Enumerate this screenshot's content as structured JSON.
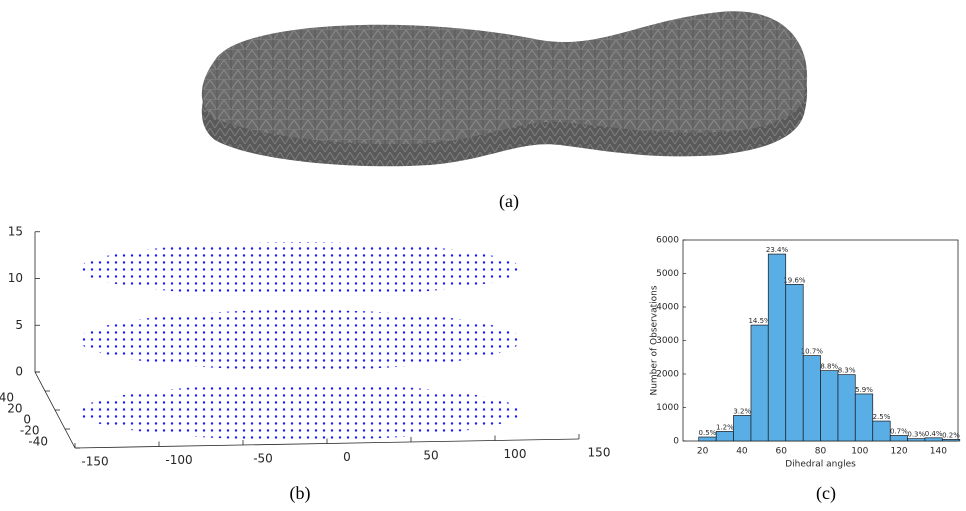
{
  "captions": [
    "(a)",
    "(b)",
    "(c)"
  ],
  "chart_data": [
    {
      "type": "scatter3d",
      "color": "#1a1aff",
      "xlim": [
        -150,
        150
      ],
      "ylim": [
        -40,
        40
      ],
      "zlim": [
        0,
        15
      ],
      "xticks": [
        -150,
        -100,
        -50,
        0,
        50,
        100,
        150
      ],
      "yticks": [
        -40,
        -20,
        0,
        20,
        40
      ],
      "zticks": [
        0,
        5,
        10,
        15
      ]
    },
    {
      "type": "histogram",
      "xlabel": "Dihedral angles",
      "ylabel": "Number of Observations",
      "bins": [
        18,
        26.9,
        35.7,
        44.6,
        53.4,
        62.3,
        71.2,
        80,
        88.9,
        97.7,
        106.6,
        115.5,
        124.3,
        133.2,
        142,
        150.9
      ],
      "values": [
        119,
        286,
        763,
        3460,
        5580,
        4675,
        2550,
        2100,
        1980,
        1405,
        595,
        165,
        70,
        95,
        48
      ],
      "value_labels": [
        "0.5%",
        "1.2%",
        "3.2%",
        "14.5%",
        "23.4%",
        "19.6%",
        "10.7%",
        "8.8%",
        "8.3%",
        "5.9%",
        "2.5%",
        "0.7%",
        "0.3%",
        "0.4%",
        "0.2%"
      ],
      "color": "#5aaee6",
      "edgecolor": "#1a1a1a",
      "xlim": [
        10,
        150
      ],
      "ylim": [
        0,
        6000
      ],
      "xticks": [
        20,
        40,
        60,
        80,
        100,
        120,
        140
      ],
      "yticks": [
        0,
        1000,
        2000,
        3000,
        4000,
        5000,
        6000
      ]
    }
  ]
}
